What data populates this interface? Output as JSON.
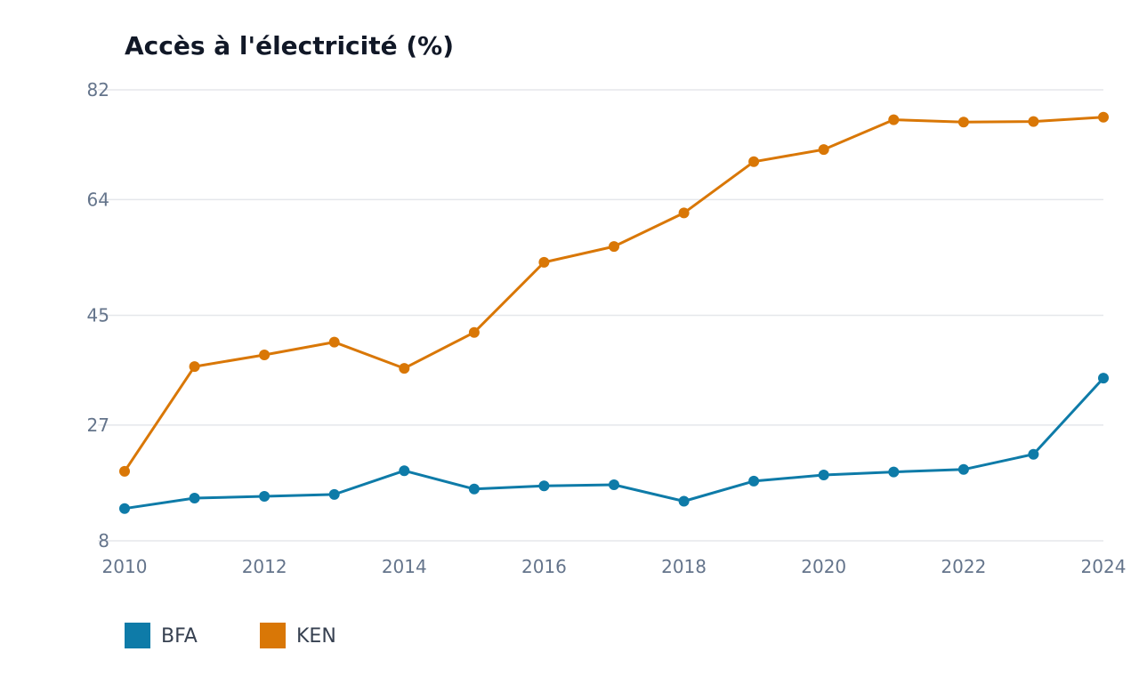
{
  "chart_data": {
    "type": "line",
    "title": "Accès à l'électricité (%)",
    "xlabel": "",
    "ylabel": "",
    "x": [
      2010,
      2011,
      2012,
      2013,
      2014,
      2015,
      2016,
      2017,
      2018,
      2019,
      2020,
      2021,
      2022,
      2023,
      2024
    ],
    "x_ticks": [
      "2010",
      "2012",
      "2014",
      "2016",
      "2018",
      "2020",
      "2022",
      "2024"
    ],
    "y_ticks": [
      "8",
      "27",
      "45",
      "64",
      "82"
    ],
    "xlim": [
      2010,
      2024
    ],
    "ylim": [
      8,
      82
    ],
    "grid": true,
    "legend_position": "bottom-left",
    "series": [
      {
        "name": "BFA",
        "color": "#0e7ba8",
        "values": [
          13.3,
          15.0,
          15.3,
          15.6,
          19.5,
          16.5,
          17.0,
          17.2,
          14.5,
          17.8,
          18.8,
          19.3,
          19.7,
          22.2,
          34.7
        ]
      },
      {
        "name": "KEN",
        "color": "#d97706",
        "values": [
          19.4,
          36.6,
          38.5,
          40.6,
          36.3,
          42.2,
          53.7,
          56.3,
          61.8,
          70.2,
          72.2,
          77.1,
          76.7,
          76.8,
          77.5
        ]
      }
    ]
  }
}
